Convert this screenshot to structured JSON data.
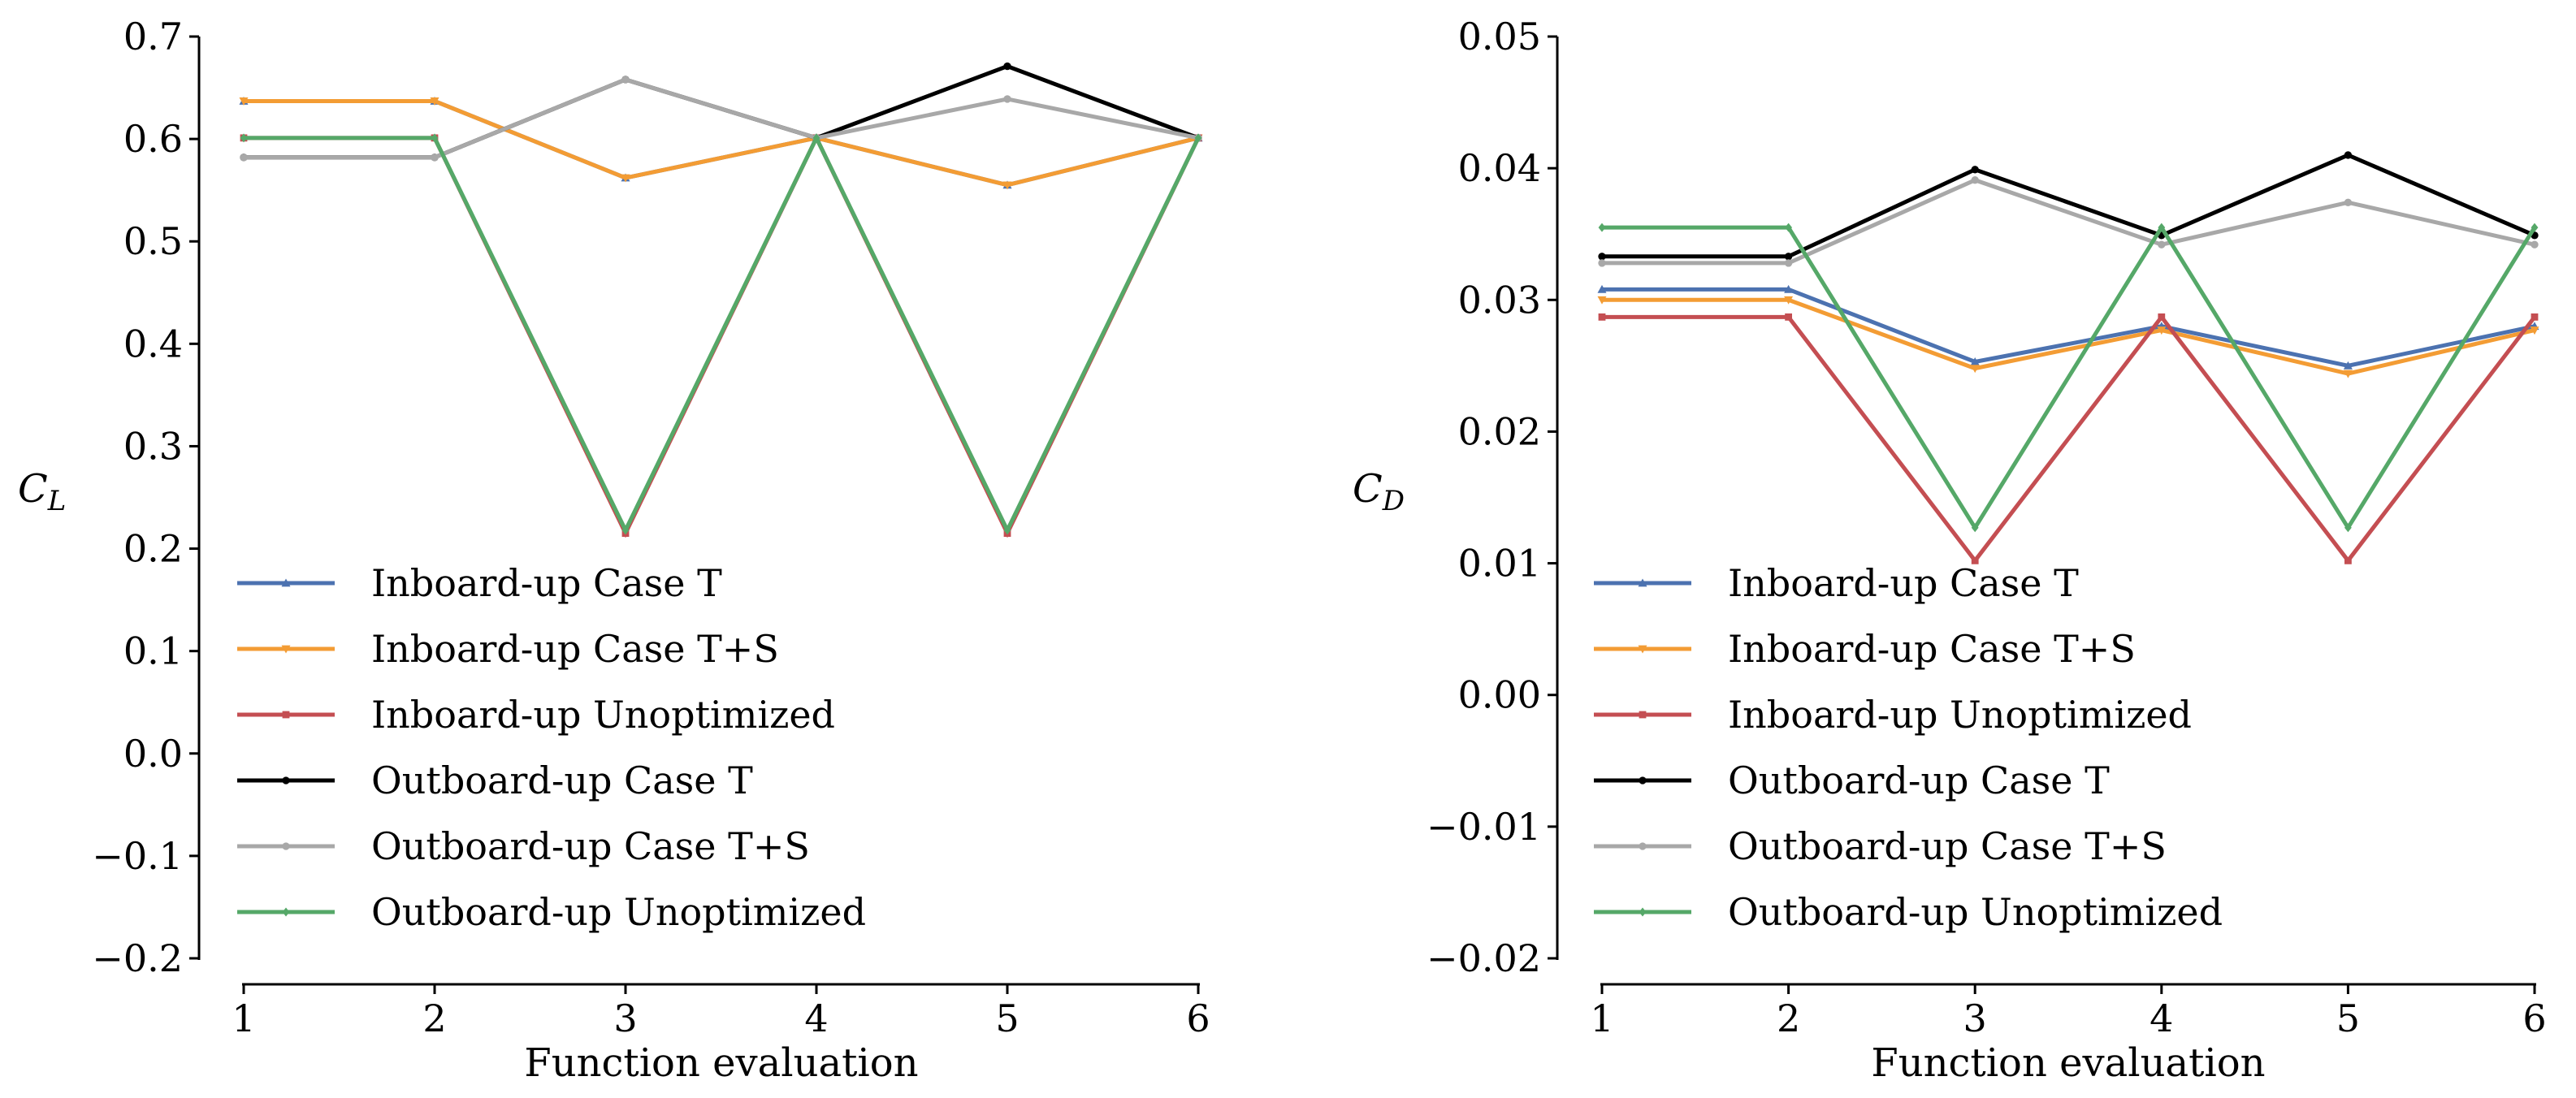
{
  "chart_data": [
    {
      "type": "line",
      "xlabel": "Function evaluation",
      "ylabel": "C",
      "ylabel_sub": "L",
      "x": [
        1,
        2,
        3,
        4,
        5,
        6
      ],
      "xticks": [
        "1",
        "2",
        "3",
        "4",
        "5",
        "6"
      ],
      "ylim": [
        -0.2,
        0.7
      ],
      "yticks": [
        "0.7",
        "0.6",
        "0.5",
        "0.4",
        "0.3",
        "0.2",
        "0.1",
        "0.0",
        "−0.1",
        "−0.2"
      ],
      "ytick_values": [
        0.7,
        0.6,
        0.5,
        0.4,
        0.3,
        0.2,
        0.1,
        0.0,
        -0.1,
        -0.2
      ],
      "legend_position": "lower-left",
      "series": [
        {
          "name": "Inboard-up Case T",
          "color": "#4c72b0",
          "marker": "triangle",
          "values": [
            0.637,
            0.637,
            0.562,
            0.601,
            0.555,
            0.601
          ]
        },
        {
          "name": "Inboard-up Case T+S",
          "color": "#f39c34",
          "marker": "triangle-down",
          "values": [
            0.637,
            0.637,
            0.562,
            0.601,
            0.555,
            0.601
          ]
        },
        {
          "name": "Inboard-up Unoptimized",
          "color": "#c44e52",
          "marker": "square",
          "values": [
            0.601,
            0.601,
            0.215,
            0.601,
            0.215,
            0.601
          ]
        },
        {
          "name": "Outboard-up Case T",
          "color": "#000000",
          "marker": "circle",
          "values": [
            0.582,
            0.582,
            0.658,
            0.601,
            0.671,
            0.601
          ]
        },
        {
          "name": "Outboard-up Case T+S",
          "color": "#a8a8a8",
          "marker": "circle",
          "values": [
            0.582,
            0.582,
            0.658,
            0.601,
            0.639,
            0.601
          ]
        },
        {
          "name": "Outboard-up Unoptimized",
          "color": "#55a868",
          "marker": "diamond",
          "values": [
            0.601,
            0.601,
            0.218,
            0.601,
            0.218,
            0.601
          ]
        }
      ]
    },
    {
      "type": "line",
      "xlabel": "Function evaluation",
      "ylabel": "C",
      "ylabel_sub": "D",
      "x": [
        1,
        2,
        3,
        4,
        5,
        6
      ],
      "xticks": [
        "1",
        "2",
        "3",
        "4",
        "5",
        "6"
      ],
      "ylim": [
        -0.02,
        0.05
      ],
      "yticks": [
        "0.05",
        "0.04",
        "0.03",
        "0.02",
        "0.01",
        "0.00",
        "−0.01",
        "−0.02"
      ],
      "ytick_values": [
        0.05,
        0.04,
        0.03,
        0.02,
        0.01,
        0.0,
        -0.01,
        -0.02
      ],
      "legend_position": "lower-left",
      "series": [
        {
          "name": "Inboard-up Case T",
          "color": "#4c72b0",
          "marker": "triangle",
          "values": [
            0.0308,
            0.0308,
            0.0253,
            0.028,
            0.025,
            0.028
          ]
        },
        {
          "name": "Inboard-up Case T+S",
          "color": "#f39c34",
          "marker": "triangle-down",
          "values": [
            0.03,
            0.03,
            0.0248,
            0.0277,
            0.0244,
            0.0277
          ]
        },
        {
          "name": "Inboard-up Unoptimized",
          "color": "#c44e52",
          "marker": "square",
          "values": [
            0.0287,
            0.0287,
            0.0102,
            0.0287,
            0.0102,
            0.0287
          ]
        },
        {
          "name": "Outboard-up Case T",
          "color": "#000000",
          "marker": "circle",
          "values": [
            0.0333,
            0.0333,
            0.0399,
            0.0349,
            0.041,
            0.0349
          ]
        },
        {
          "name": "Outboard-up Case T+S",
          "color": "#a8a8a8",
          "marker": "circle",
          "values": [
            0.0328,
            0.0328,
            0.0391,
            0.0342,
            0.0374,
            0.0342
          ]
        },
        {
          "name": "Outboard-up Unoptimized",
          "color": "#55a868",
          "marker": "diamond",
          "values": [
            0.0355,
            0.0355,
            0.0127,
            0.0355,
            0.0127,
            0.0355
          ]
        }
      ]
    }
  ]
}
